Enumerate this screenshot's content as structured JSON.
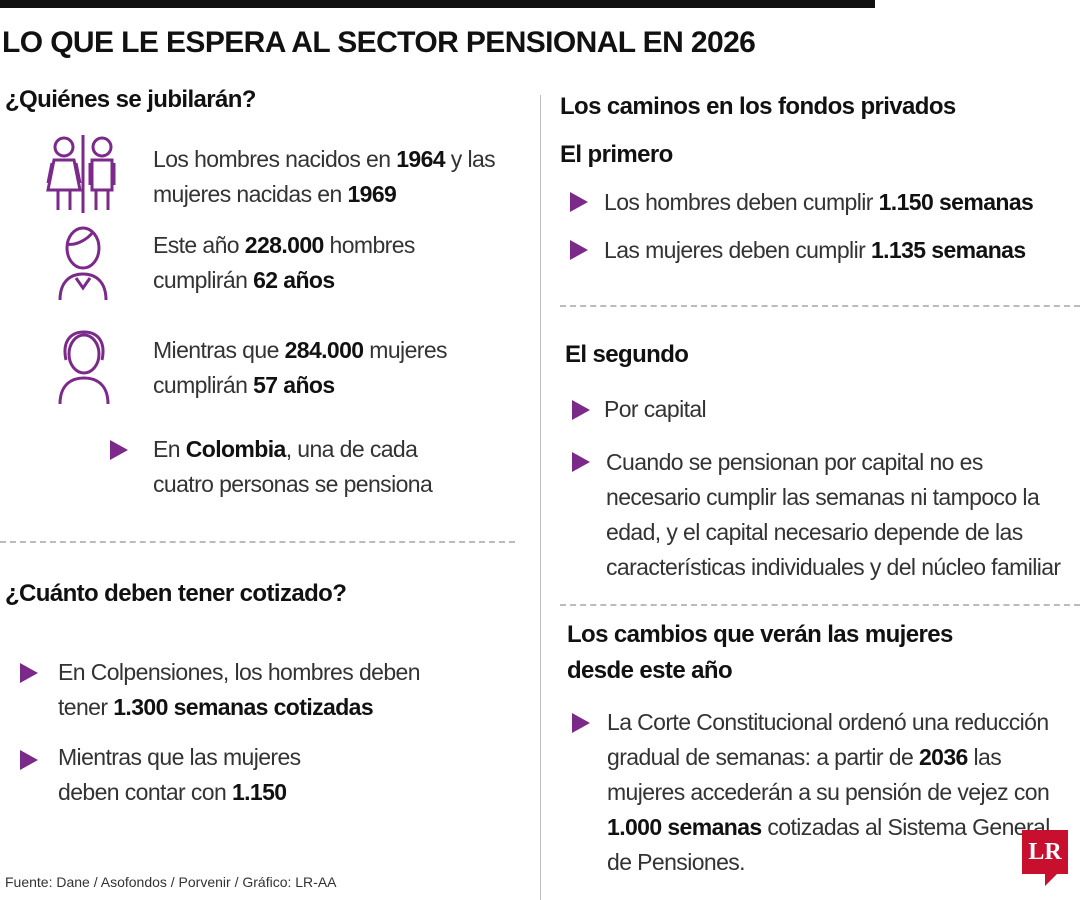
{
  "header": {
    "title": "LO QUE LE ESPERA AL SECTOR PENSIONAL EN 2026"
  },
  "left": {
    "section1": {
      "heading": "¿Quiénes se jubilarán?",
      "items": [
        [
          {
            "t": "Los hombres nacidos en "
          },
          {
            "b": "1964"
          },
          {
            "t": " y las mujeres nacidas en "
          },
          {
            "b": "1969"
          }
        ],
        [
          {
            "t": "Este año "
          },
          {
            "b": "228.000"
          },
          {
            "t": " hombres cumplirán "
          },
          {
            "b": "62 años"
          }
        ],
        [
          {
            "t": "Mientras que "
          },
          {
            "b": "284.000"
          },
          {
            "t": " mujeres cumplirán "
          },
          {
            "b": "57 años"
          }
        ],
        [
          {
            "t": "En "
          },
          {
            "b": "Colombia"
          },
          {
            "t": ", una de cada cuatro personas se pensiona"
          }
        ]
      ]
    },
    "section2": {
      "heading": "¿Cuánto deben tener cotizado?",
      "items": [
        [
          {
            "t": "En Colpensiones, los hombres deben tener "
          },
          {
            "b": "1.300 semanas cotizadas"
          }
        ],
        [
          {
            "t": "Mientras que las mujeres deben contar con "
          },
          {
            "b": "1.150"
          }
        ]
      ]
    }
  },
  "right": {
    "heading": "Los caminos en los fondos privados",
    "first": {
      "heading": "El primero",
      "items": [
        [
          {
            "t": "Los hombres deben cumplir "
          },
          {
            "b": "1.150 semanas"
          }
        ],
        [
          {
            "t": "Las mujeres deben cumplir "
          },
          {
            "b": "1.135 semanas"
          }
        ]
      ]
    },
    "second": {
      "heading": "El segundo",
      "items": [
        [
          {
            "t": "Por capital"
          }
        ],
        [
          {
            "t": "Cuando se pensionan por capital no es necesario cumplir las semanas ni tampoco la edad, y el capital necesario depende de las características individuales y del núcleo familiar"
          }
        ]
      ]
    },
    "women": {
      "heading": [
        "Los cambios que verán las mujeres",
        "desde este año"
      ],
      "items": [
        [
          {
            "t": "La Corte Constitucional ordenó una reducción gradual de semanas: a partir de "
          },
          {
            "b": "2036"
          },
          {
            "t": " las mujeres accederán a su pensión de vejez con "
          },
          {
            "b": "1.000 semanas"
          },
          {
            "t": " cotizadas al Sistema General de Pensiones."
          }
        ]
      ]
    }
  },
  "footer": {
    "source": "Fuente: Dane / Asofondos / Porvenir / Gráfico: LR-AA",
    "logo": "LR"
  }
}
